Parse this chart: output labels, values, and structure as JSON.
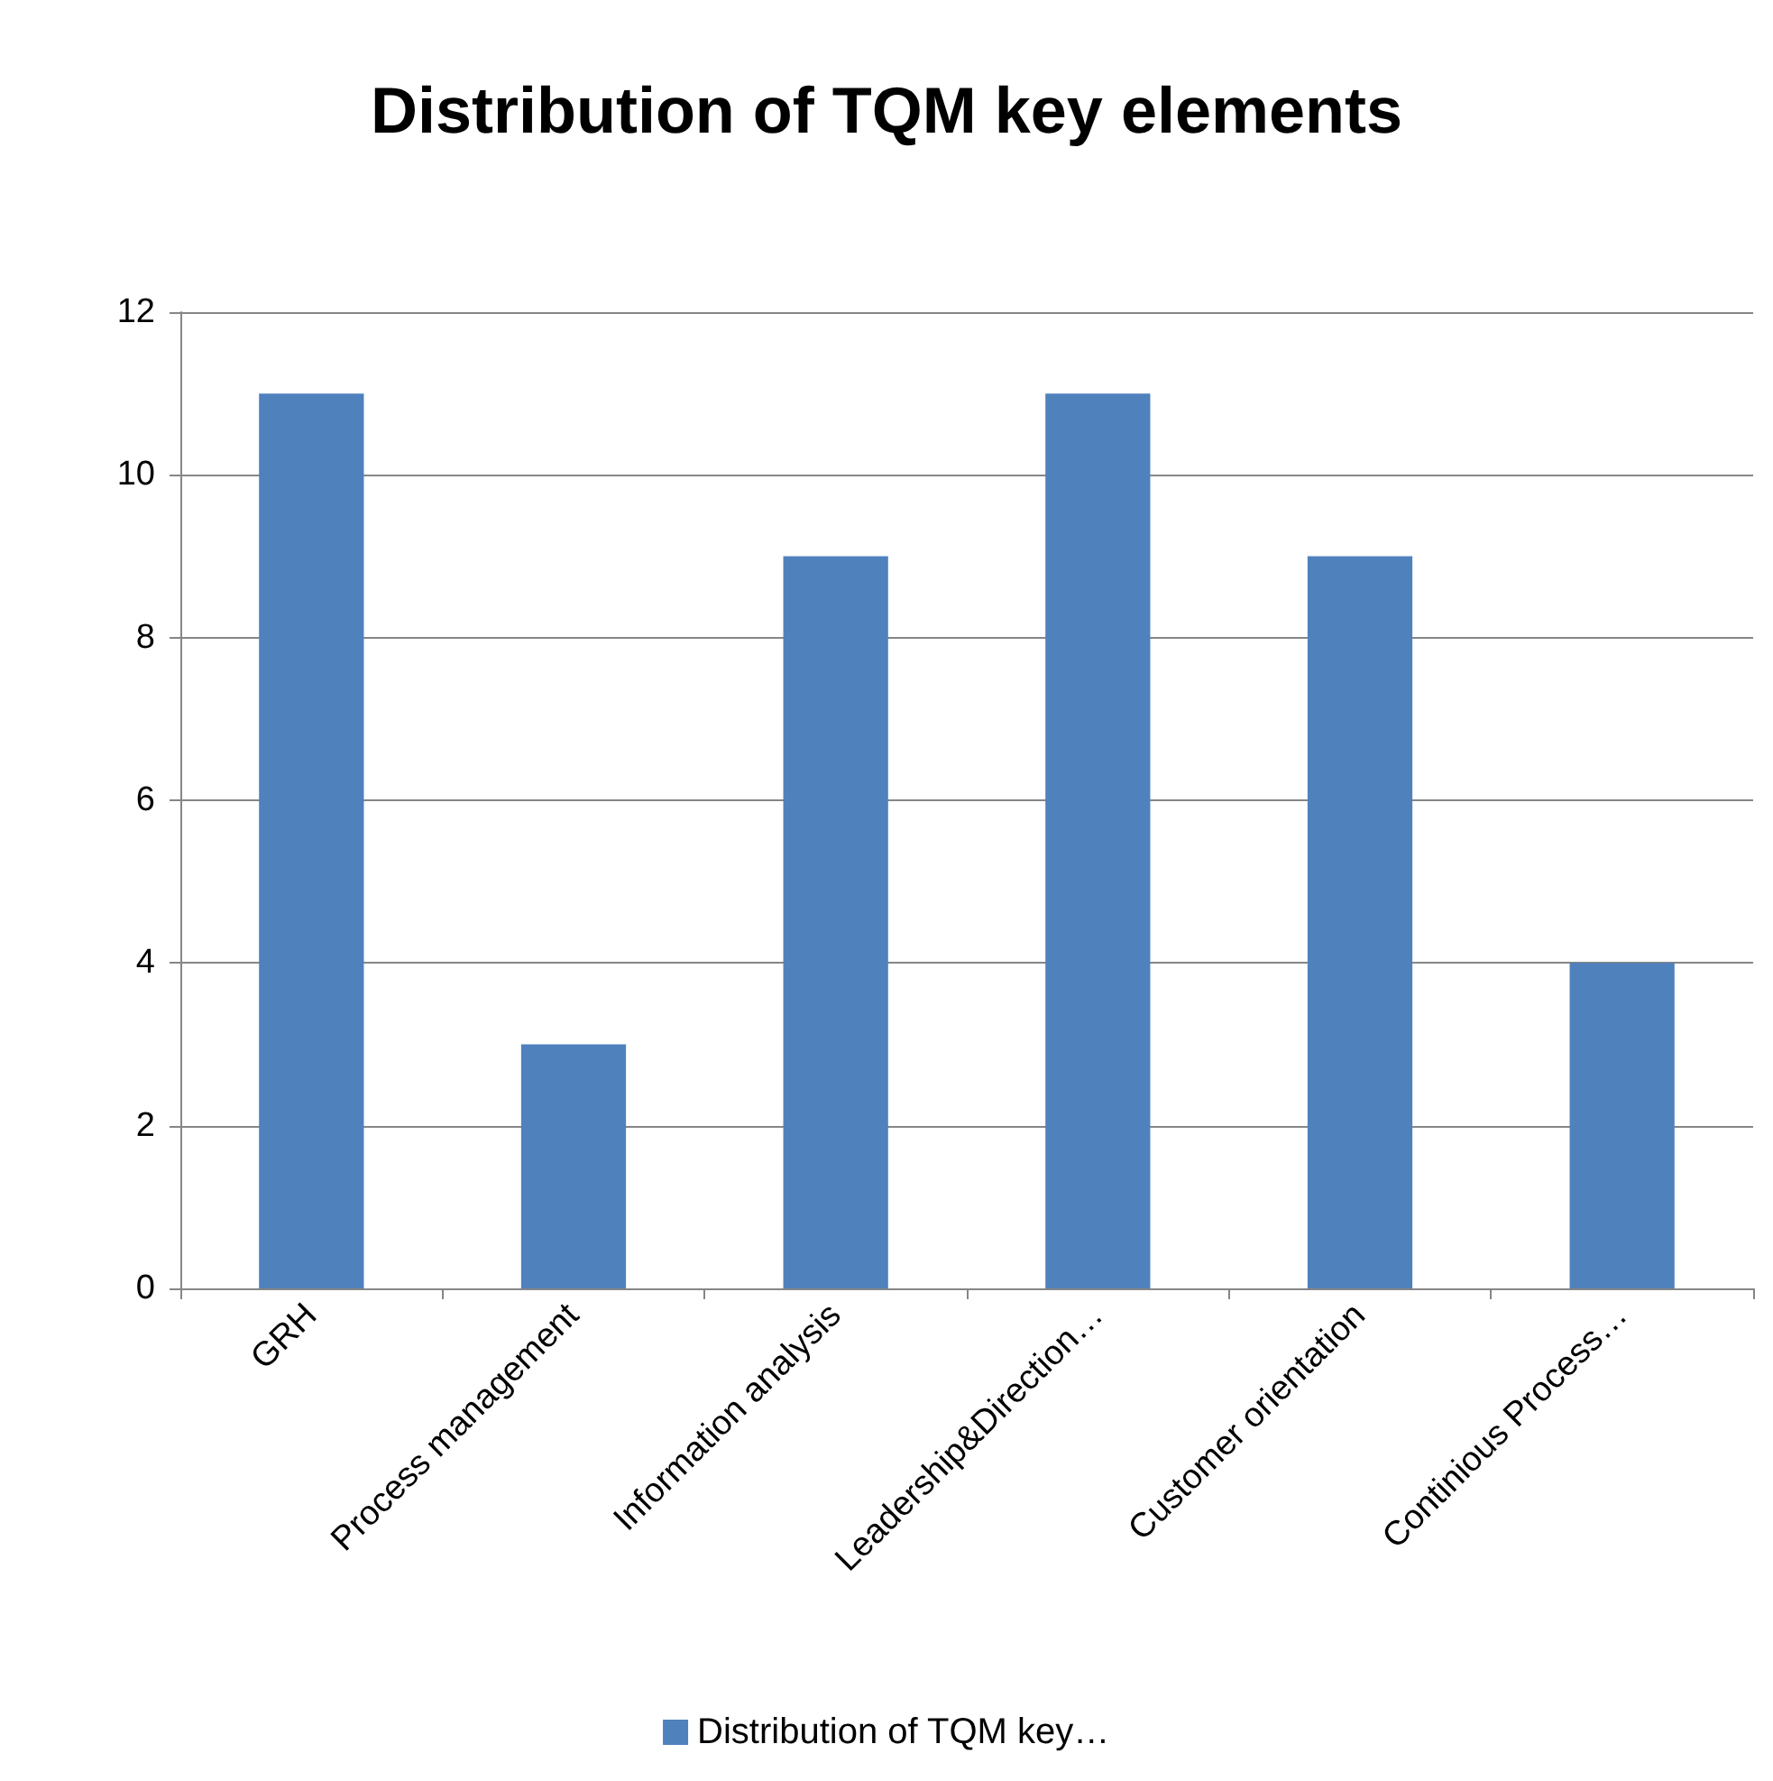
{
  "chart_data": {
    "type": "bar",
    "title": "Distribution of TQM key elements",
    "categories": [
      "GRH",
      "Process management",
      "Information analysis",
      "Leadership&Direction…",
      "Customer orientation",
      "Continious Process…"
    ],
    "series": [
      {
        "name": "Distribution of TQM key…",
        "color": "#4f81bd",
        "values": [
          11,
          3,
          9,
          11,
          9,
          4
        ]
      }
    ],
    "ylim": [
      0,
      12
    ],
    "yticks": [
      0,
      2,
      4,
      6,
      8,
      10,
      12
    ],
    "grid": "y",
    "legend": "bottom"
  }
}
